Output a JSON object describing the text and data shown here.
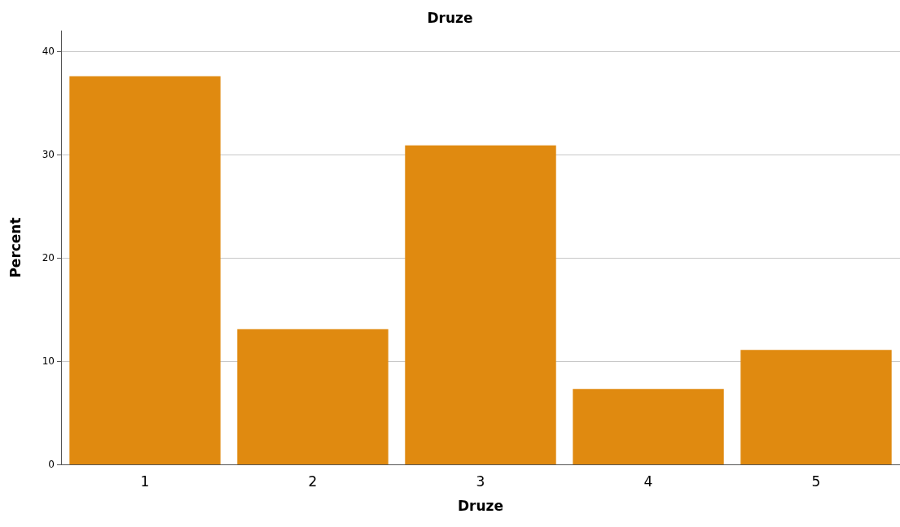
{
  "chart_data": {
    "type": "bar",
    "title": "Druze",
    "xlabel": "Druze",
    "ylabel": "Percent",
    "categories": [
      "1",
      "2",
      "3",
      "4",
      "5"
    ],
    "values": [
      37.6,
      13.1,
      30.9,
      7.3,
      11.1
    ],
    "color": "#e08a10",
    "ylim": [
      0,
      42
    ],
    "yticks": [
      0,
      10,
      20,
      30,
      40
    ],
    "grid": "y"
  }
}
